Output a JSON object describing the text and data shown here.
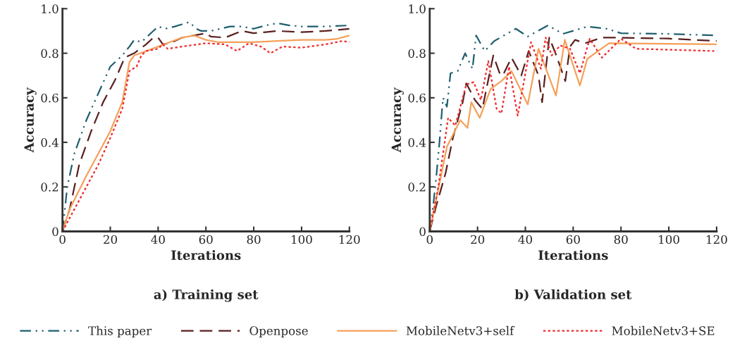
{
  "chart_data": [
    {
      "type": "line",
      "title": "a) Training set",
      "xlabel": "Iterations",
      "ylabel": "Accuracy",
      "xlim": [
        0,
        120
      ],
      "ylim": [
        0,
        1
      ],
      "xticks": [
        0,
        20,
        40,
        60,
        80,
        100,
        120
      ],
      "yticks": [
        0,
        0.2,
        0.4,
        0.6,
        0.8,
        {
          "value": 1,
          "label": "1.0"
        }
      ],
      "grid": false,
      "legend": "bottom",
      "marker": "none",
      "series": [
        {
          "name": "This paper",
          "color": "#1f5f6e",
          "line_style": "dashdot",
          "x": [
            0,
            2,
            5,
            10,
            15,
            20,
            25,
            28,
            30,
            33,
            36,
            40,
            43,
            47,
            50,
            53,
            56,
            58,
            62,
            70,
            75,
            80,
            85,
            90,
            95,
            100,
            110,
            120
          ],
          "values": [
            0,
            0.2,
            0.35,
            0.5,
            0.62,
            0.74,
            0.79,
            0.83,
            0.86,
            0.85,
            0.88,
            0.92,
            0.91,
            0.92,
            0.93,
            0.94,
            0.91,
            0.9,
            0.9,
            0.92,
            0.92,
            0.91,
            0.925,
            0.935,
            0.925,
            0.92,
            0.92,
            0.925
          ]
        },
        {
          "name": "Openpose",
          "color": "#5a1f1f",
          "line_style": "dashed",
          "x": [
            0,
            3,
            7,
            12,
            17,
            22,
            26,
            30,
            35,
            38,
            40,
            42,
            45,
            50,
            55,
            60,
            62,
            68,
            75,
            80,
            85,
            90,
            100,
            110,
            120
          ],
          "values": [
            0,
            0.1,
            0.3,
            0.45,
            0.58,
            0.68,
            0.78,
            0.8,
            0.84,
            0.87,
            0.87,
            0.84,
            0.845,
            0.87,
            0.88,
            0.89,
            0.875,
            0.87,
            0.9,
            0.89,
            0.895,
            0.9,
            0.895,
            0.9,
            0.91
          ]
        },
        {
          "name": "MobileNetv3+self",
          "color": "#f5a05a",
          "line_style": "solid",
          "x": [
            0,
            3,
            10,
            20,
            25,
            28,
            30,
            35,
            40,
            45,
            50,
            55,
            60,
            65,
            70,
            80,
            90,
            100,
            110,
            115,
            120
          ],
          "values": [
            0,
            0.1,
            0.25,
            0.45,
            0.58,
            0.76,
            0.79,
            0.81,
            0.83,
            0.85,
            0.87,
            0.88,
            0.86,
            0.85,
            0.85,
            0.85,
            0.855,
            0.86,
            0.86,
            0.865,
            0.88
          ]
        },
        {
          "name": "MobileNetv3+SE",
          "color": "#ee2a2a",
          "line_style": "dotted",
          "x": [
            0,
            5,
            10,
            15,
            20,
            25,
            28,
            31,
            33,
            35,
            40,
            42,
            44,
            50,
            60,
            68,
            73,
            78,
            83,
            87,
            92,
            100,
            110,
            117,
            120
          ],
          "values": [
            0,
            0.1,
            0.2,
            0.3,
            0.42,
            0.55,
            0.72,
            0.74,
            0.79,
            0.81,
            0.82,
            0.84,
            0.82,
            0.83,
            0.845,
            0.84,
            0.81,
            0.845,
            0.83,
            0.8,
            0.83,
            0.825,
            0.84,
            0.855,
            0.85
          ]
        }
      ]
    },
    {
      "type": "line",
      "title": "b) Validation set",
      "xlabel": "Iterations",
      "ylabel": "Accuracy",
      "xlim": [
        0,
        120
      ],
      "ylim": [
        0,
        1
      ],
      "xticks": [
        0,
        20,
        40,
        60,
        80,
        100,
        120
      ],
      "yticks": [
        0,
        0.2,
        0.4,
        0.6,
        0.8,
        {
          "value": 1,
          "label": "1.0"
        }
      ],
      "grid": false,
      "marker": "none",
      "series": [
        {
          "color": "#1f5f6e",
          "line_style": "dashdot",
          "x": [
            0,
            1.5,
            2.6,
            4,
            5.1,
            5.6,
            7.2,
            8.7,
            11.7,
            14.8,
            17.9,
            19.4,
            23,
            27,
            36,
            41,
            49.5,
            55.7,
            66,
            74,
            80,
            100,
            120
          ],
          "values": [
            0,
            0.12,
            0.23,
            0.39,
            0.54,
            0.6,
            0.56,
            0.71,
            0.72,
            0.8,
            0.73,
            0.88,
            0.81,
            0.855,
            0.91,
            0.875,
            0.925,
            0.887,
            0.92,
            0.91,
            0.89,
            0.887,
            0.88
          ]
        },
        {
          "color": "#5a1f1f",
          "line_style": "dashed",
          "x": [
            0,
            2.6,
            6.6,
            9.7,
            13.8,
            15.3,
            18.9,
            22,
            24,
            26.6,
            29.6,
            31,
            34.2,
            38.3,
            41.4,
            45.5,
            47,
            50,
            52.6,
            56.7,
            58.7,
            60.8,
            65,
            72,
            79,
            99.6,
            120
          ],
          "values": [
            0,
            0.11,
            0.26,
            0.42,
            0.58,
            0.665,
            0.59,
            0.55,
            0.655,
            0.79,
            0.7,
            0.71,
            0.78,
            0.7,
            0.81,
            0.7,
            0.58,
            0.87,
            0.8,
            0.675,
            0.83,
            0.86,
            0.845,
            0.87,
            0.87,
            0.866,
            0.855
          ]
        },
        {
          "color": "#f5a05a",
          "line_style": "solid",
          "x": [
            0,
            7.2,
            12.8,
            15.8,
            17.4,
            20.9,
            25.5,
            30,
            34.2,
            41,
            45.5,
            52.8,
            56.5,
            62.8,
            65.9,
            75,
            120
          ],
          "values": [
            0,
            0.38,
            0.5,
            0.465,
            0.58,
            0.51,
            0.64,
            0.675,
            0.72,
            0.57,
            0.82,
            0.61,
            0.86,
            0.655,
            0.775,
            0.845,
            0.84
          ]
        },
        {
          "color": "#ee2a2a",
          "line_style": "dotted",
          "x": [
            0,
            3.6,
            7.7,
            10.7,
            15.3,
            18.4,
            21.4,
            24.5,
            28,
            30,
            33.2,
            36.8,
            42.4,
            46.5,
            48.5,
            51,
            54.6,
            58.7,
            62.8,
            66.9,
            72,
            80,
            86.3,
            119
          ],
          "values": [
            0,
            0.2,
            0.51,
            0.475,
            0.66,
            0.67,
            0.59,
            0.765,
            0.55,
            0.53,
            0.74,
            0.52,
            0.85,
            0.73,
            0.87,
            0.79,
            0.835,
            0.82,
            0.71,
            0.865,
            0.78,
            0.865,
            0.82,
            0.81
          ]
        }
      ]
    }
  ]
}
